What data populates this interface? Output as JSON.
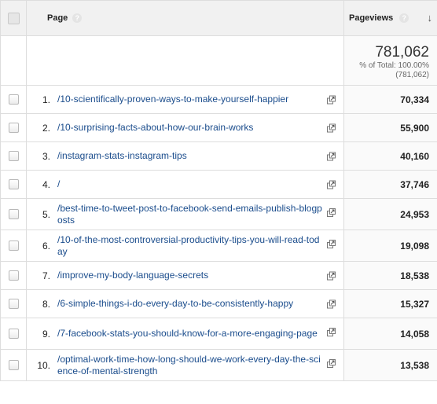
{
  "header": {
    "page_label": "Page",
    "pageviews_label": "Pageviews",
    "help_glyph": "?",
    "sort_glyph": "↓"
  },
  "totals": {
    "value": "781,062",
    "pct_text": "% of Total: 100.00%",
    "abs_text": "(781,062)"
  },
  "rows": [
    {
      "rank": "1.",
      "page": "/10-scientifically-proven-ways-to-make-yourself-happier",
      "views": "70,334"
    },
    {
      "rank": "2.",
      "page": "/10-surprising-facts-about-how-our-brain-works",
      "views": "55,900"
    },
    {
      "rank": "3.",
      "page": "/instagram-stats-instagram-tips",
      "views": "40,160"
    },
    {
      "rank": "4.",
      "page": "/",
      "views": "37,746"
    },
    {
      "rank": "5.",
      "page": "/best-time-to-tweet-post-to-facebook-send-emails-publish-blogposts",
      "views": "24,953"
    },
    {
      "rank": "6.",
      "page": "/10-of-the-most-controversial-productivity-tips-you-will-read-today",
      "views": "19,098"
    },
    {
      "rank": "7.",
      "page": "/improve-my-body-language-secrets",
      "views": "18,538"
    },
    {
      "rank": "8.",
      "page": "/6-simple-things-i-do-every-day-to-be-consistently-happy",
      "views": "15,327"
    },
    {
      "rank": "9.",
      "page": "/7-facebook-stats-you-should-know-for-a-more-engaging-page",
      "views": "14,058"
    },
    {
      "rank": "10.",
      "page": "/optimal-work-time-how-long-should-we-work-every-day-the-science-of-mental-strength",
      "views": "13,538"
    }
  ],
  "icons": {
    "row_action": "popout-icon",
    "help": "help-icon",
    "sort": "sort-descending-icon"
  }
}
